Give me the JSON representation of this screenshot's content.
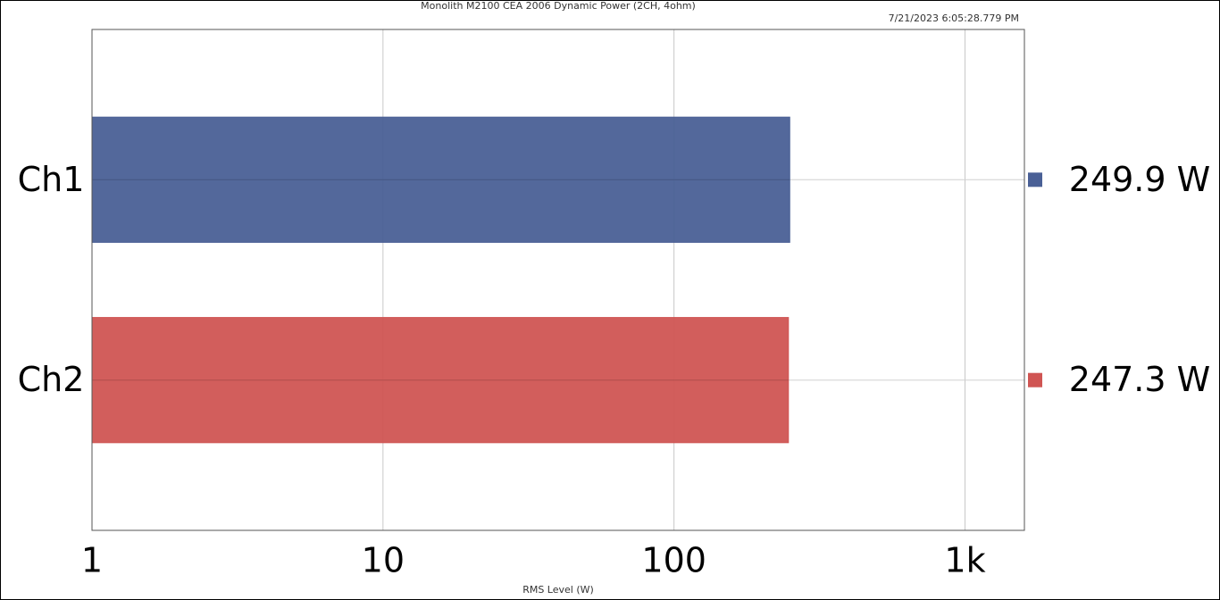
{
  "chart_data": {
    "type": "bar",
    "orientation": "horizontal",
    "title": "Monolith M2100 CEA 2006 Dynamic Power (2CH, 4ohm)",
    "subtitle": "7/21/2023 6:05:28.779 PM",
    "x_label": "RMS Level (W)",
    "categories": [
      "Ch1",
      "Ch2"
    ],
    "values": [
      249.9,
      247.3
    ],
    "value_labels": [
      "249.9 W",
      "247.3 W"
    ],
    "colors": [
      "#4a6096",
      "#d05553"
    ],
    "log_scale": true,
    "xlim": [
      1,
      1600
    ],
    "xticks": [
      1,
      10,
      100,
      {
        "value": 1000,
        "label": "1k"
      }
    ],
    "grid": true,
    "legend": "right"
  }
}
